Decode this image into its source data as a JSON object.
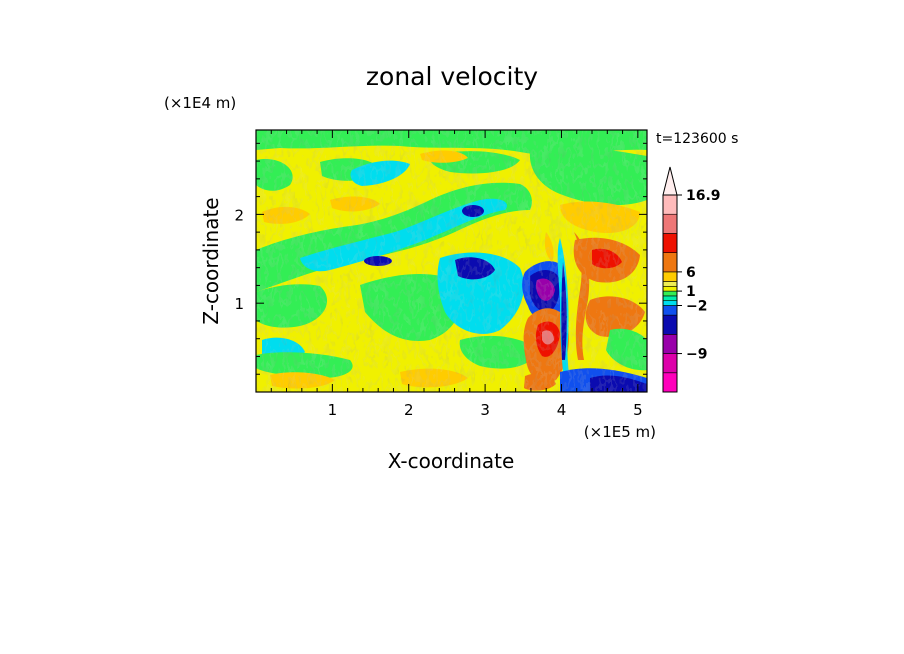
{
  "chart_data": {
    "type": "heatmap",
    "title": "zonal velocity",
    "time_label": "t=123600 s",
    "x": {
      "label": "X-coordinate",
      "scale_label": "(×1E5 m)",
      "range": [
        0,
        5.12
      ],
      "ticks": [
        1,
        2,
        3,
        4,
        5
      ],
      "tick_labels": [
        "1",
        "2",
        "3",
        "4",
        "5"
      ]
    },
    "y": {
      "label": "Z-coordinate",
      "scale_label": "(×1E4 m)",
      "range": [
        0,
        2.95
      ],
      "ticks": [
        1,
        2
      ],
      "tick_labels": [
        "1",
        "2"
      ]
    },
    "colorbar": {
      "labels": [
        "16.9",
        "6",
        "1",
        "−2",
        "−9"
      ],
      "label_levels": [
        16.9,
        6,
        1,
        -2,
        -9
      ],
      "levels": [
        -15,
        -12,
        -9,
        -6,
        -3,
        -2,
        -1,
        0,
        1,
        2,
        3,
        6,
        9,
        12,
        15,
        16.9
      ],
      "colors": [
        "#ff00bb",
        "#dd00aa",
        "#9900aa",
        "#0b0bb0",
        "#1050ee",
        "#00ddee",
        "#00eeaa",
        "#33ee55",
        "#f0f000",
        "#eeee55",
        "#ffcc00",
        "#ee7711",
        "#ee1100",
        "#ee7777",
        "#ffbbbb"
      ],
      "extend_top_color": "#ffeeee",
      "grid": false
    },
    "field_summary": {
      "colormap_order": "low magenta → blue → cyan → green → yellow → orange → red → pink",
      "structure": [
        {
          "region": "tilted bands rising left to right across z≈1.2–2.6 (x≈0.2–3.3)",
          "values": "alternating yellow/green/cyan with blue cores near x≈1.7,z≈1.5 and x≈2.7,z≈2.1"
        },
        {
          "region": "near x≈3.9, z≈0–1.6",
          "values": "strong dipole: orange/red (≈6–9) below, purple/magenta (≈−9 to −15) above"
        },
        {
          "region": "lower-left (x≈0–1.2, z≈0–0.8)",
          "values": "mostly yellow (≈1–3) with green patches"
        },
        {
          "region": "lower-right surface (x≈3.9–5.1, z≈0–0.2)",
          "values": "blue/purple (≈−3 to −9)"
        }
      ]
    }
  }
}
